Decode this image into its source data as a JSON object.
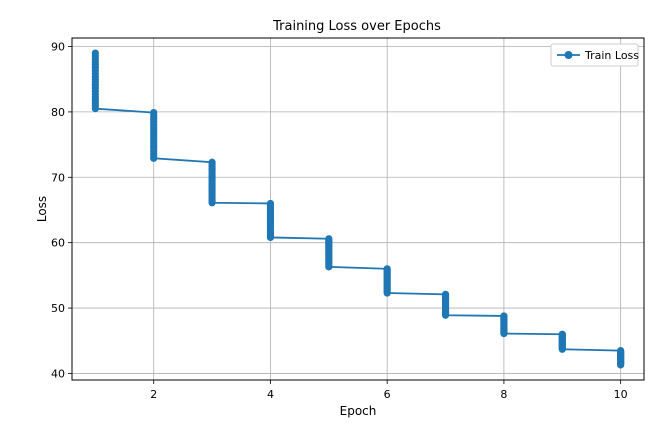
{
  "chart_data": {
    "type": "line",
    "title": "Training Loss over Epochs",
    "xlabel": "Epoch",
    "ylabel": "Loss",
    "xlim": [
      0.6,
      10.4
    ],
    "ylim": [
      39,
      91.3
    ],
    "xticks": [
      2,
      4,
      6,
      8,
      10
    ],
    "yticks": [
      40,
      50,
      60,
      70,
      80,
      90
    ],
    "grid": true,
    "legend": "top-right",
    "color": "#1f77b4",
    "series": [
      {
        "name": "Train Loss",
        "epoch_ranges": [
          {
            "epoch": 1,
            "start": 89.0,
            "end": 80.5
          },
          {
            "epoch": 2,
            "start": 79.9,
            "end": 72.9
          },
          {
            "epoch": 3,
            "start": 72.3,
            "end": 66.1
          },
          {
            "epoch": 4,
            "start": 66.0,
            "end": 60.8
          },
          {
            "epoch": 5,
            "start": 60.6,
            "end": 56.3
          },
          {
            "epoch": 6,
            "start": 56.0,
            "end": 52.3
          },
          {
            "epoch": 7,
            "start": 52.1,
            "end": 48.9
          },
          {
            "epoch": 8,
            "start": 48.8,
            "end": 46.1
          },
          {
            "epoch": 9,
            "start": 46.0,
            "end": 43.7
          },
          {
            "epoch": 10,
            "start": 43.5,
            "end": 41.3
          }
        ],
        "steps_per_epoch": 20
      }
    ]
  }
}
